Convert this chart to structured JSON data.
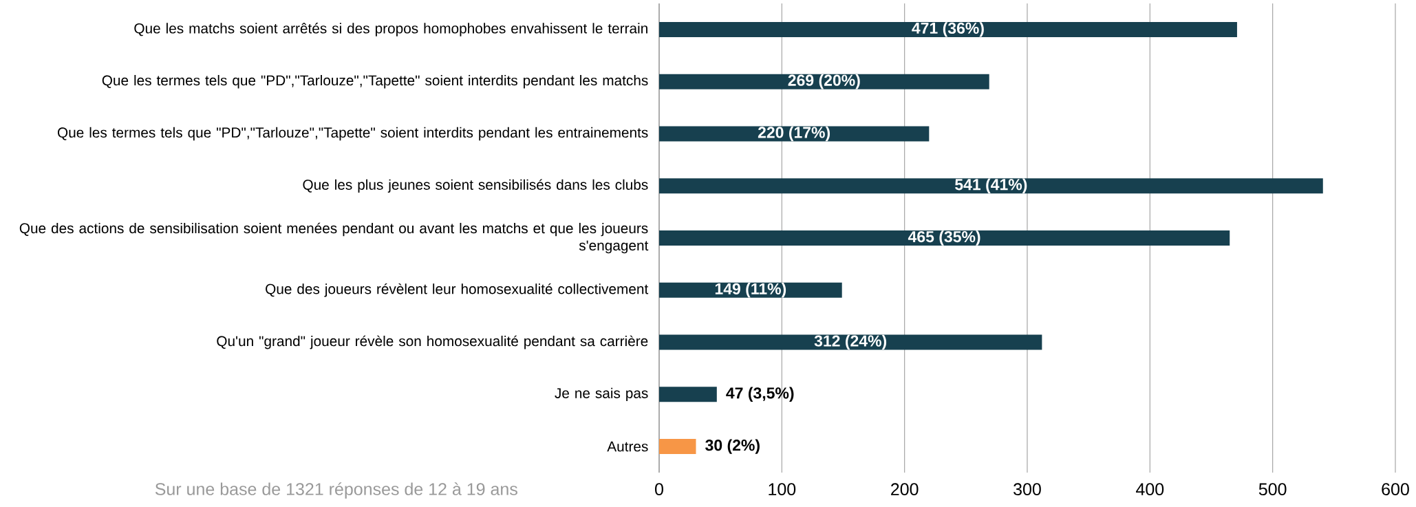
{
  "chart_data": {
    "type": "bar",
    "orientation": "horizontal",
    "categories": [
      "Que les matchs soient arrêtés si des propos homophobes envahissent le terrain",
      "Que les termes tels que \"PD\",\"Tarlouze\",\"Tapette\" soient interdits pendant les matchs",
      "Que les termes tels que \"PD\",\"Tarlouze\",\"Tapette\" soient interdits pendant les entrainements",
      "Que les plus jeunes soient sensibilisés dans les clubs",
      "Que des actions de sensibilisation soient menées pendant ou avant les matchs et que les joueurs s'engagent",
      "Que des joueurs révèlent leur homosexualité collectivement",
      "Qu'un \"grand\" joueur révèle son homosexualité pendant sa carrière",
      "Je ne sais pas",
      "Autres"
    ],
    "values": [
      471,
      269,
      220,
      541,
      465,
      149,
      312,
      47,
      30
    ],
    "value_labels": [
      "471 (36%)",
      "269 (20%)",
      "220 (17%)",
      "541 (41%)",
      "465 (35%)",
      "149 (11%)",
      "312 (24%)",
      "47 (3,5%)",
      "30 (2%)"
    ],
    "colors": [
      "#17404f",
      "#17404f",
      "#17404f",
      "#17404f",
      "#17404f",
      "#17404f",
      "#17404f",
      "#17404f",
      "#f79646"
    ],
    "xlim": [
      0,
      600
    ],
    "xticks": [
      0,
      100,
      200,
      300,
      400,
      500,
      600
    ],
    "grid": "x",
    "annotations": [
      "Sur une base de 1321 réponses de 12 à 19 ans"
    ]
  }
}
